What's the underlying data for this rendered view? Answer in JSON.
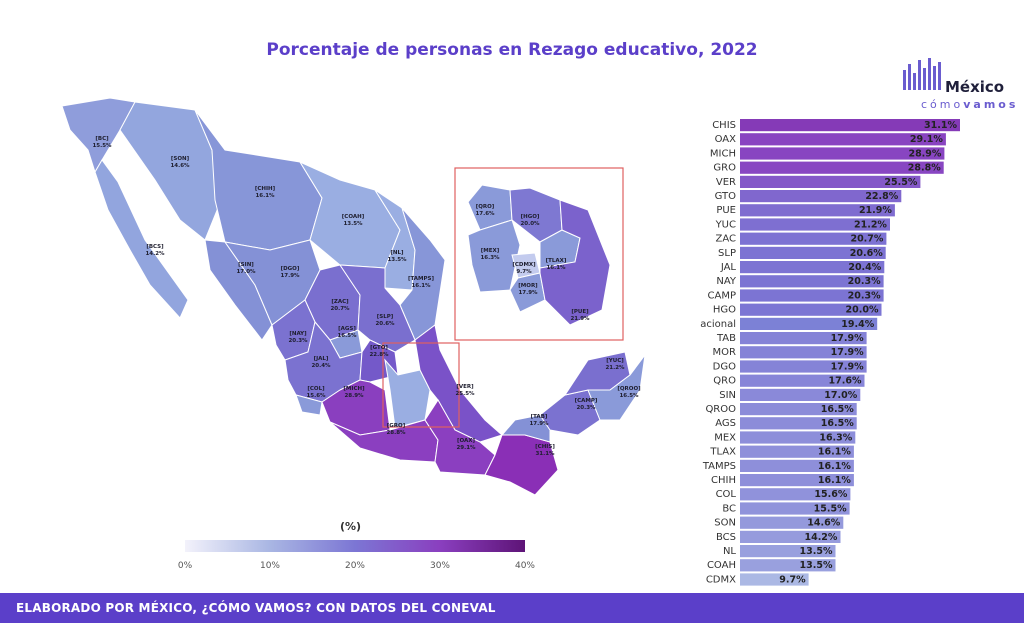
{
  "title": "Porcentaje de personas en Rezago educativo, 2022",
  "logo": {
    "brand": "México",
    "tagline_prefix": "cómo",
    "tagline_suffix": "vamos"
  },
  "footer": "ELABORADO POR MÉXICO, ¿CÓMO VAMOS? CON DATOS DEL CONEVAL",
  "colors": {
    "accent": "#5b3fc9",
    "scale_low": "#f3f2fb",
    "scale_high": "#5e1477",
    "national": "#7c81d6",
    "frame": "#e06060"
  },
  "chart_data": [
    {
      "type": "bar",
      "orientation": "horizontal",
      "sort": "descending",
      "categories": [
        "CHIS",
        "OAX",
        "MICH",
        "GRO",
        "VER",
        "GTO",
        "PUE",
        "YUC",
        "ZAC",
        "SLP",
        "JAL",
        "NAY",
        "CAMP",
        "HGO",
        "Nacional",
        "TAB",
        "MOR",
        "DGO",
        "QRO",
        "SIN",
        "QROO",
        "AGS",
        "MEX",
        "TLAX",
        "TAMPS",
        "CHIH",
        "COL",
        "BC",
        "SON",
        "BCS",
        "NL",
        "COAH",
        "CDMX"
      ],
      "values": [
        31.1,
        29.1,
        28.9,
        28.8,
        25.5,
        22.8,
        21.9,
        21.2,
        20.7,
        20.6,
        20.4,
        20.3,
        20.3,
        20.0,
        19.4,
        17.9,
        17.9,
        17.9,
        17.6,
        17.0,
        16.5,
        16.5,
        16.3,
        16.1,
        16.1,
        16.1,
        15.6,
        15.5,
        14.6,
        14.2,
        13.5,
        13.5,
        9.7
      ],
      "value_labels": [
        "31.1%",
        "29.1%",
        "28.9%",
        "28.8%",
        "25.5%",
        "22.8%",
        "21.9%",
        "21.2%",
        "20.7%",
        "20.6%",
        "20.4%",
        "20.3%",
        "20.3%",
        "20.0%",
        "19.4%",
        "17.9%",
        "17.9%",
        "17.9%",
        "17.6%",
        "17.0%",
        "16.5%",
        "16.5%",
        "16.3%",
        "16.1%",
        "16.1%",
        "16.1%",
        "15.6%",
        "15.5%",
        "14.6%",
        "14.2%",
        "13.5%",
        "13.5%",
        "9.7%"
      ],
      "highlight": "Nacional",
      "grid": false
    },
    {
      "type": "heatmap",
      "kind": "choropleth",
      "legend_title": "(%)",
      "scale_ticks": [
        "0%",
        "10%",
        "20%",
        "30%",
        "40%"
      ],
      "scale_range": [
        0,
        40
      ],
      "regions": [
        {
          "name": "BC",
          "label": "15.5%"
        },
        {
          "name": "SON",
          "label": "14.6%"
        },
        {
          "name": "CHIH",
          "label": "16.1%"
        },
        {
          "name": "COAH",
          "label": "13.5%"
        },
        {
          "name": "BCS",
          "label": "14.2%"
        },
        {
          "name": "NL",
          "label": "13.5%"
        },
        {
          "name": "SIN",
          "label": "17.0%"
        },
        {
          "name": "DGO",
          "label": "17.9%"
        },
        {
          "name": "TAMPS",
          "label": "16.1%"
        },
        {
          "name": "ZAC",
          "label": "20.7%"
        },
        {
          "name": "SLP",
          "label": "20.6%"
        },
        {
          "name": "NAY",
          "label": "20.3%"
        },
        {
          "name": "AGS",
          "label": "16.5%"
        },
        {
          "name": "GTO",
          "label": "22.8%"
        },
        {
          "name": "JAL",
          "label": "20.4%"
        },
        {
          "name": "COL",
          "label": "15.6%"
        },
        {
          "name": "MICH",
          "label": "28.9%"
        },
        {
          "name": "GRO",
          "label": "28.8%"
        },
        {
          "name": "VER",
          "label": "25.5%"
        },
        {
          "name": "OAX",
          "label": "29.1%"
        },
        {
          "name": "CHIS",
          "label": "31.1%"
        },
        {
          "name": "TAB",
          "label": "17.9%"
        },
        {
          "name": "CAMP",
          "label": "20.3%"
        },
        {
          "name": "YUC",
          "label": "21.2%"
        },
        {
          "name": "QROO",
          "label": "16.5%"
        }
      ],
      "inset_regions": [
        {
          "name": "QRO",
          "label": "17.6%"
        },
        {
          "name": "HGO",
          "label": "20.0%"
        },
        {
          "name": "MEX",
          "label": "16.3%"
        },
        {
          "name": "CDMX",
          "label": "9.7%"
        },
        {
          "name": "TLAX",
          "label": "16.1%"
        },
        {
          "name": "MOR",
          "label": "17.9%"
        },
        {
          "name": "PUE",
          "label": "21.9%"
        }
      ]
    }
  ]
}
